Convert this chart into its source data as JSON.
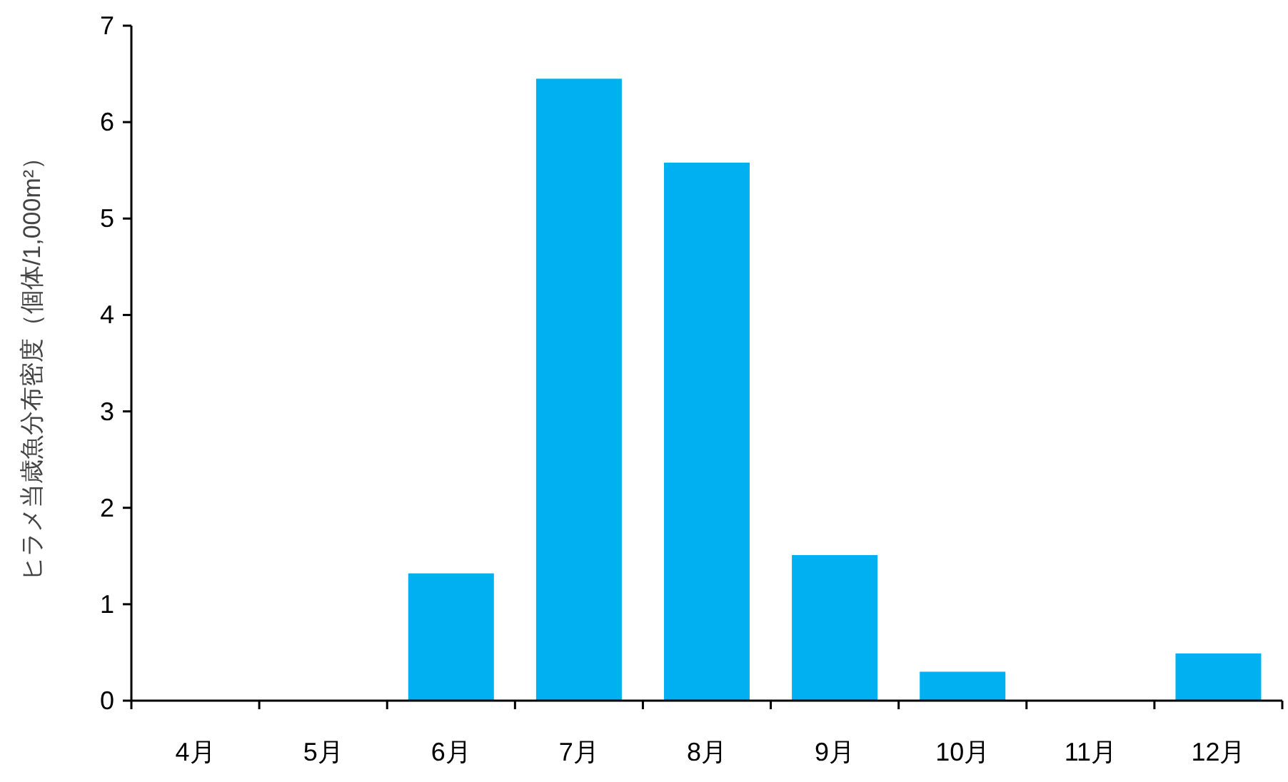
{
  "chart_data": {
    "type": "bar",
    "ylabel": "ヒラメ当歳魚分布密度（個体/1,000m²）",
    "categories": [
      "4月",
      "5月",
      "6月",
      "7月",
      "8月",
      "9月",
      "10月",
      "11月",
      "12月"
    ],
    "values": [
      0,
      0,
      1.32,
      6.45,
      5.58,
      1.51,
      0.3,
      0,
      0.49
    ],
    "color": "#00b0f0",
    "ylim": [
      0,
      7
    ],
    "yticks": [
      0,
      1,
      2,
      3,
      4,
      5,
      6,
      7
    ]
  }
}
